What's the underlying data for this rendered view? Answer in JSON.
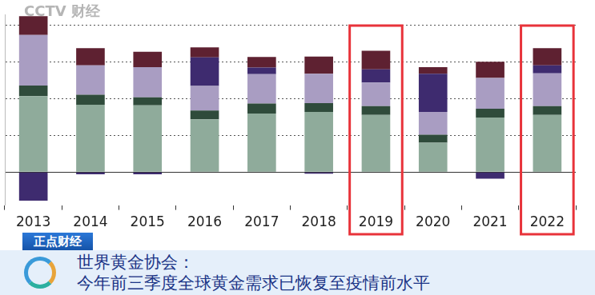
{
  "chart_data": {
    "type": "bar",
    "categories": [
      "2013",
      "2014",
      "2015",
      "2016",
      "2017",
      "2018",
      "2019",
      "2020",
      "2021",
      "2022"
    ],
    "series": [
      {
        "color": "#8fab9b",
        "values": [
          2070,
          1840,
          1820,
          1440,
          1600,
          1640,
          1560,
          800,
          1490,
          1560
        ]
      },
      {
        "color": "#2f4b3b",
        "values": [
          290,
          270,
          220,
          240,
          270,
          240,
          240,
          220,
          240,
          240
        ]
      },
      {
        "color": "#a99dc2",
        "values": [
          1380,
          800,
          820,
          670,
          800,
          800,
          640,
          620,
          840,
          890
        ]
      },
      {
        "color": "#3e2b6f",
        "values": [
          -780,
          -60,
          -60,
          780,
          180,
          -40,
          360,
          1040,
          -180,
          220
        ]
      },
      {
        "color": "#5e2131",
        "values": [
          510,
          470,
          420,
          270,
          290,
          470,
          510,
          180,
          440,
          470
        ]
      }
    ],
    "stacked": true,
    "ylim": [
      -900,
      4300
    ],
    "yticks": [
      0,
      1000,
      2000,
      3000,
      4000
    ],
    "grid": true,
    "tick_labels": "x",
    "highlight": [
      "2019",
      "2022"
    ]
  },
  "overlay": {
    "logo": "CCTV 财经",
    "tag": "正点财经",
    "headline": [
      "世界黄金协会：",
      "今年前三季度全球黄金需求已恢复至疫情前水平"
    ]
  }
}
